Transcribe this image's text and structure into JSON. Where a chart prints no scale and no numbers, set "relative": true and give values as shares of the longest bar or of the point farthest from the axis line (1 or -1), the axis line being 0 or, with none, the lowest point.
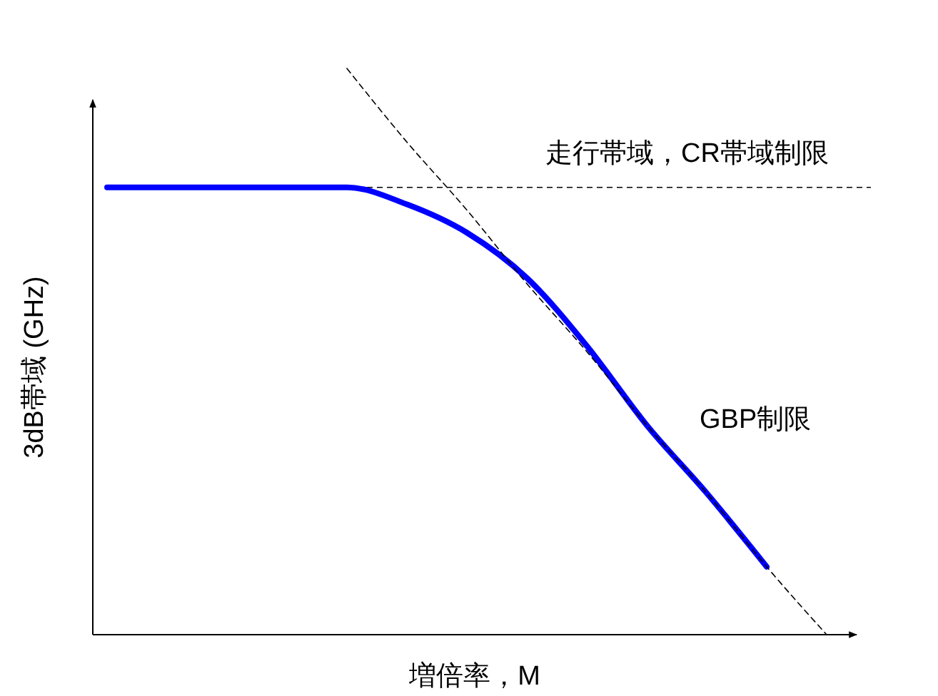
{
  "chart_data": {
    "type": "line",
    "relative": true,
    "xlabel": "増倍率，M",
    "ylabel": "3dB帯域 (GHz)",
    "categories": [
      null,
      null,
      null,
      null,
      null,
      null,
      null,
      null,
      null,
      null,
      null,
      null,
      null
    ],
    "series": [
      {
        "color": "#0000ff",
        "line_style": "solid",
        "values": [
          0.79,
          0.79,
          0.79,
          0.79,
          0.79,
          0.76,
          0.71,
          0.63,
          0.51,
          0.37,
          0.25,
          0.12,
          null
        ]
      },
      {
        "color": "#000000",
        "line_style": "dashed",
        "values": [
          null,
          null,
          null,
          null,
          1,
          0.87,
          0.75,
          0.62,
          0.5,
          0.37,
          0.25,
          0.12,
          0
        ]
      }
    ],
    "ref_lines": [
      {
        "axis": "y",
        "value": 0.79,
        "label": "走行帯域，CR帯域制限",
        "color": "#000000",
        "line_style": "dashed"
      }
    ],
    "annotations": [
      "GBP制限"
    ]
  }
}
